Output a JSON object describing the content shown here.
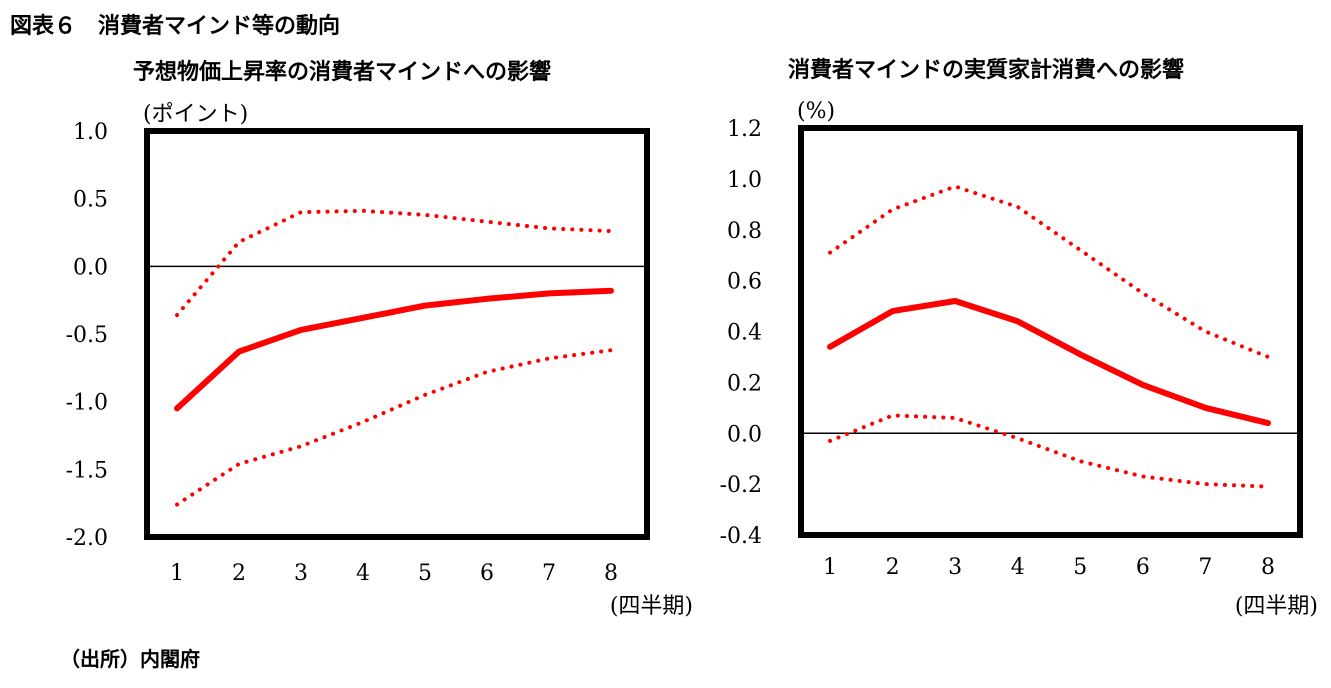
{
  "figure_title": "図表６　消費者マインド等の動向",
  "source_note": "（出所）内閣府",
  "colors": {
    "series": "#ff0000",
    "frame": "#000000"
  },
  "chart_data": [
    {
      "type": "line",
      "title": "予想物価上昇率の消費者マインドへの影響",
      "ylabel": "(ポイント)",
      "xlabel": "(四半期)",
      "x": [
        1,
        2,
        3,
        4,
        5,
        6,
        7,
        8
      ],
      "ylim": [
        -2.0,
        1.0
      ],
      "yticks": [
        1.0,
        0.5,
        0.0,
        -0.5,
        -1.0,
        -1.5,
        -2.0
      ],
      "ytick_labels": [
        "1.0",
        "0.5",
        "0.0",
        "-0.5",
        "-1.0",
        "-1.5",
        "-2.0"
      ],
      "zero_line": true,
      "series": [
        {
          "name": "upper",
          "style": "dotted",
          "values": [
            -0.36,
            0.18,
            0.4,
            0.41,
            0.38,
            0.33,
            0.28,
            0.26
          ]
        },
        {
          "name": "response",
          "style": "solid",
          "values": [
            -1.05,
            -0.63,
            -0.47,
            -0.38,
            -0.29,
            -0.24,
            -0.2,
            -0.18
          ]
        },
        {
          "name": "lower",
          "style": "dotted",
          "values": [
            -1.76,
            -1.46,
            -1.33,
            -1.15,
            -0.95,
            -0.78,
            -0.68,
            -0.62
          ]
        }
      ]
    },
    {
      "type": "line",
      "title": "消費者マインドの実質家計消費への影響",
      "ylabel": "(%)",
      "xlabel": "(四半期)",
      "x": [
        1,
        2,
        3,
        4,
        5,
        6,
        7,
        8
      ],
      "ylim": [
        -0.4,
        1.2
      ],
      "yticks": [
        1.2,
        1.0,
        0.8,
        0.6,
        0.4,
        0.2,
        0.0,
        -0.2,
        -0.4
      ],
      "ytick_labels": [
        "1.2",
        "1.0",
        "0.8",
        "0.6",
        "0.4",
        "0.2",
        "0.0",
        "-0.2",
        "-0.4"
      ],
      "zero_line": true,
      "series": [
        {
          "name": "upper",
          "style": "dotted",
          "values": [
            0.71,
            0.88,
            0.97,
            0.89,
            0.72,
            0.55,
            0.4,
            0.3
          ]
        },
        {
          "name": "response",
          "style": "solid",
          "values": [
            0.34,
            0.48,
            0.52,
            0.44,
            0.31,
            0.19,
            0.1,
            0.04
          ]
        },
        {
          "name": "lower",
          "style": "dotted",
          "values": [
            -0.03,
            0.07,
            0.06,
            -0.02,
            -0.11,
            -0.17,
            -0.2,
            -0.21
          ]
        }
      ]
    }
  ]
}
